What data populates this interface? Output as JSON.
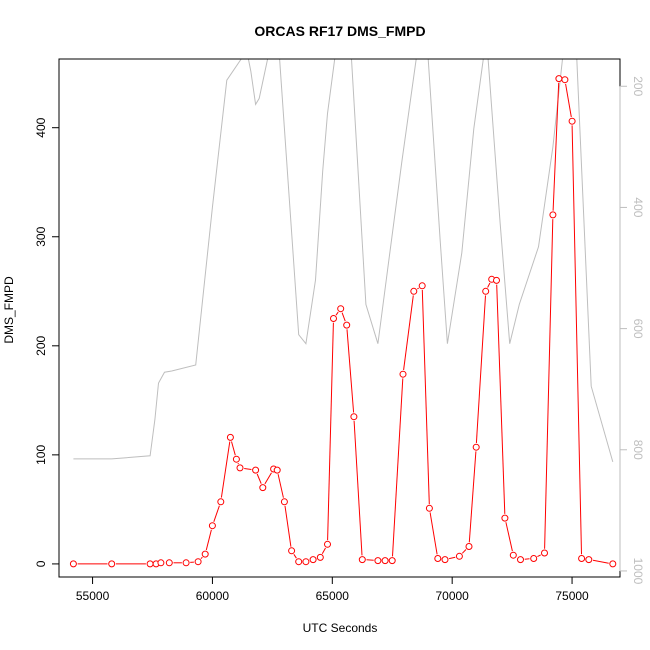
{
  "chart_data": {
    "type": "line",
    "title": "ORCAS RF17 DMS_FMPD",
    "xlabel": "UTC Seconds",
    "ylabel": "DMS_FMPD",
    "xlim": [
      53600,
      77000
    ],
    "ylim": [
      -12,
      463
    ],
    "x_ticks": [
      55000,
      60000,
      65000,
      70000,
      75000
    ],
    "y_ticks": [
      0,
      100,
      200,
      300,
      400
    ],
    "y2_ticks": [
      200,
      400,
      600,
      800,
      1000
    ],
    "y2_reversed": true,
    "y2_lim": [
      1010,
      155
    ],
    "grid": false,
    "legend": "none",
    "colors": {
      "primary": "#ff0000",
      "secondary": "#bebebe",
      "axis": "#000000",
      "axis2": "#bebebe"
    },
    "series": [
      {
        "role": "primary",
        "marker": "open-circle",
        "x": [
          54200,
          55800,
          57400,
          57650,
          57850,
          58200,
          58900,
          59400,
          59700,
          60000,
          60350,
          60750,
          61000,
          61150,
          61800,
          62100,
          62550,
          62700,
          63000,
          63300,
          63600,
          63900,
          64200,
          64500,
          64800,
          65050,
          65350,
          65600,
          65900,
          66250,
          66900,
          67200,
          67500,
          67950,
          68400,
          68750,
          69050,
          69400,
          69700,
          70300,
          70700,
          71000,
          71400,
          71650,
          71850,
          72200,
          72550,
          72850,
          73400,
          73850,
          74200,
          74450,
          74700,
          75000,
          75400,
          75700,
          76700
        ],
        "y": [
          0,
          0,
          0,
          0,
          1,
          1,
          1,
          2,
          9,
          35,
          57,
          116,
          96,
          88,
          86,
          70,
          87,
          86,
          57,
          12,
          2,
          2,
          4,
          6,
          18,
          225,
          234,
          219,
          135,
          4,
          3,
          3,
          3,
          174,
          250,
          255,
          51,
          5,
          4,
          7,
          16,
          107,
          250,
          261,
          260,
          42,
          8,
          4,
          5,
          10,
          320,
          445,
          444,
          406,
          5,
          4,
          0
        ]
      },
      {
        "role": "secondary",
        "x": [
          54200,
          55800,
          57400,
          57600,
          57750,
          58000,
          58300,
          59300,
          60000,
          60600,
          61200,
          61500,
          61600,
          61800,
          61950,
          62300,
          62800,
          63600,
          63900,
          64300,
          64600,
          64800,
          65100,
          65300,
          65800,
          66400,
          66900,
          67400,
          67900,
          68500,
          69000,
          69500,
          69800,
          70400,
          70900,
          71300,
          71500,
          72000,
          72400,
          72800,
          73600,
          74200,
          74600,
          75200,
          75800,
          76700
        ],
        "y": [
          815,
          815,
          810,
          750,
          690,
          672,
          670,
          660,
          400,
          190,
          155,
          155,
          175,
          230,
          220,
          155,
          155,
          610,
          625,
          520,
          340,
          245,
          155,
          155,
          155,
          560,
          625,
          475,
          325,
          155,
          155,
          455,
          625,
          475,
          270,
          155,
          155,
          425,
          625,
          560,
          465,
          300,
          155,
          155,
          695,
          820
        ]
      }
    ]
  }
}
